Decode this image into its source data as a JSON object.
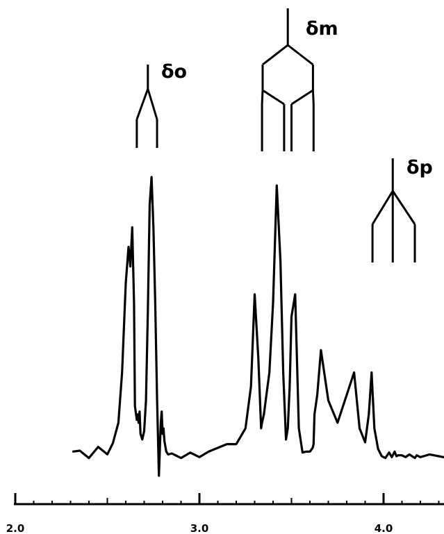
{
  "chart_data": {
    "type": "line",
    "title": "",
    "xlabel": "",
    "ylabel": "",
    "x_axis": {
      "range": [
        2.0,
        4.35
      ],
      "ticks": [
        2.0,
        3.0,
        4.0
      ],
      "tick_labels": [
        "2.0",
        "3.0",
        "4.0"
      ],
      "minor_tick_step": 0.1
    },
    "grid": false,
    "legend": "none",
    "line_color": "#000000",
    "series": [
      {
        "comment_free": true,
        "x": [
          2.31,
          2.35,
          2.4,
          2.45,
          2.5,
          2.53,
          2.56,
          2.58,
          2.6,
          2.615,
          2.625,
          2.635,
          2.645,
          2.65,
          2.66,
          2.665,
          2.67,
          2.675,
          2.68,
          2.69,
          2.7,
          2.71,
          2.72,
          2.73,
          2.74,
          2.75,
          2.76,
          2.77,
          2.78,
          2.79,
          2.795,
          2.8,
          2.805,
          2.81,
          2.82,
          2.83,
          2.85,
          2.9,
          2.95,
          3.0,
          3.05,
          3.1,
          3.15,
          3.2,
          3.25,
          3.28,
          3.3,
          3.32,
          3.335,
          3.34,
          3.35,
          3.36,
          3.38,
          3.4,
          3.42,
          3.44,
          3.455,
          3.47,
          3.48,
          3.49,
          3.5,
          3.52,
          3.54,
          3.56,
          3.58,
          3.6,
          3.615,
          3.62,
          3.625,
          3.64,
          3.66,
          3.7,
          3.75,
          3.8,
          3.84,
          3.87,
          3.9,
          3.92,
          3.935,
          3.95,
          3.97,
          3.99,
          4.01,
          4.03,
          4.045,
          4.06,
          4.07,
          4.08,
          4.1,
          4.12,
          4.14,
          4.155,
          4.17,
          4.18,
          4.2,
          4.25,
          4.3,
          4.35
        ],
        "y": [
          0.01,
          0.02,
          0.0,
          0.03,
          0.01,
          0.04,
          0.12,
          0.3,
          0.62,
          0.75,
          0.68,
          0.82,
          0.55,
          0.18,
          0.13,
          0.15,
          0.12,
          0.16,
          0.08,
          0.06,
          0.09,
          0.2,
          0.52,
          0.9,
          1.0,
          0.82,
          0.55,
          0.2,
          -0.07,
          0.12,
          0.16,
          0.08,
          0.1,
          0.05,
          0.02,
          0.0,
          0.01,
          0.0,
          0.01,
          0.0,
          0.01,
          0.03,
          0.05,
          0.04,
          0.1,
          0.25,
          0.58,
          0.35,
          0.1,
          0.12,
          0.15,
          0.2,
          0.3,
          0.55,
          0.97,
          0.7,
          0.3,
          0.06,
          0.1,
          0.25,
          0.5,
          0.58,
          0.1,
          0.01,
          0.02,
          0.01,
          0.03,
          0.05,
          0.15,
          0.22,
          0.38,
          0.2,
          0.12,
          0.22,
          0.3,
          0.1,
          0.05,
          0.15,
          0.3,
          0.1,
          0.02,
          0.0,
          0.0,
          0.01,
          0.0,
          0.01,
          0.0,
          0.01,
          0.0,
          0.0,
          0.0,
          0.0,
          0.0,
          0.0,
          0.0,
          0.0,
          0.0,
          0.0
        ]
      }
    ],
    "annotations": [
      {
        "label": "δo",
        "x_center": 2.72,
        "lines": [
          2.66,
          2.77
        ]
      },
      {
        "label": "δm",
        "x_center": 3.48,
        "lines": [
          3.34,
          3.46,
          3.5,
          3.62
        ]
      },
      {
        "label": "δp",
        "x_center": 4.05,
        "lines": [
          3.94,
          4.05,
          4.17
        ]
      }
    ]
  }
}
